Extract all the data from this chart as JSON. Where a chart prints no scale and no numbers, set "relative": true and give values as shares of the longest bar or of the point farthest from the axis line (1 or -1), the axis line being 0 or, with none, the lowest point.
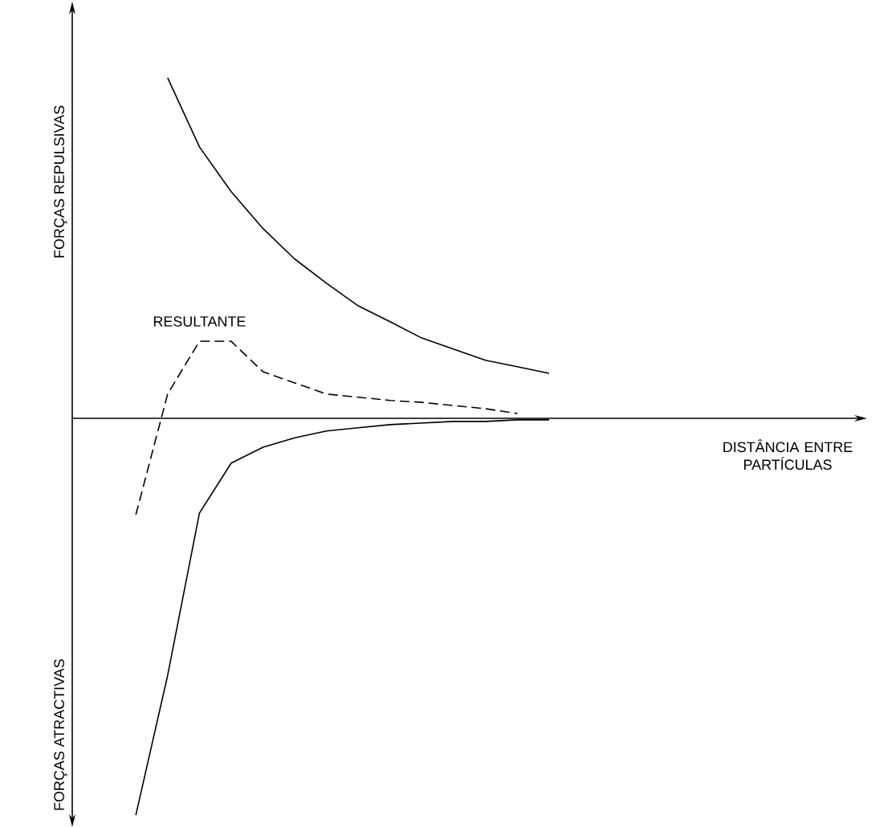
{
  "chart_data": {
    "type": "line",
    "relative": true,
    "ylabel": "FORÇAS REPULSIVAS",
    "xlabel": "DISTÂNCIA ENTRE PARTÍCULAS",
    "annotations": [
      "FORÇAS ATRACTIVAS"
    ],
    "categories": [
      null,
      null,
      null,
      null,
      null,
      null,
      null,
      null,
      null,
      null,
      null,
      null,
      null,
      null,
      null,
      null,
      null,
      null,
      null,
      null,
      null,
      null,
      null,
      null,
      null
    ],
    "series": [
      {
        "color": "#000000",
        "line_style": "solid",
        "values": [
          null,
          null,
          null,
          0.858,
          0.684,
          0.571,
          0.478,
          0.401,
          0.34,
          0.283,
          0.243,
          0.202,
          0.174,
          0.146,
          0.13,
          0.113,
          null,
          null,
          null,
          null,
          null,
          null,
          null,
          null,
          null
        ]
      },
      {
        "name": "RESULTANTE",
        "color": "#000000",
        "line_style": "dashed",
        "values": [
          null,
          null,
          -0.243,
          0.061,
          0.194,
          0.194,
          0.117,
          0.089,
          0.061,
          0.053,
          0.045,
          0.04,
          0.032,
          0.024,
          0.012,
          null,
          null,
          null,
          null,
          null,
          null,
          null,
          null,
          null,
          null
        ]
      },
      {
        "color": "#000000",
        "line_style": "solid",
        "values": [
          null,
          null,
          -1.0,
          -0.648,
          -0.239,
          -0.113,
          -0.073,
          -0.049,
          -0.032,
          -0.024,
          -0.016,
          -0.012,
          -0.008,
          -0.008,
          -0.004,
          -0.004,
          null,
          null,
          null,
          null,
          null,
          null,
          null,
          null,
          null
        ]
      }
    ]
  }
}
